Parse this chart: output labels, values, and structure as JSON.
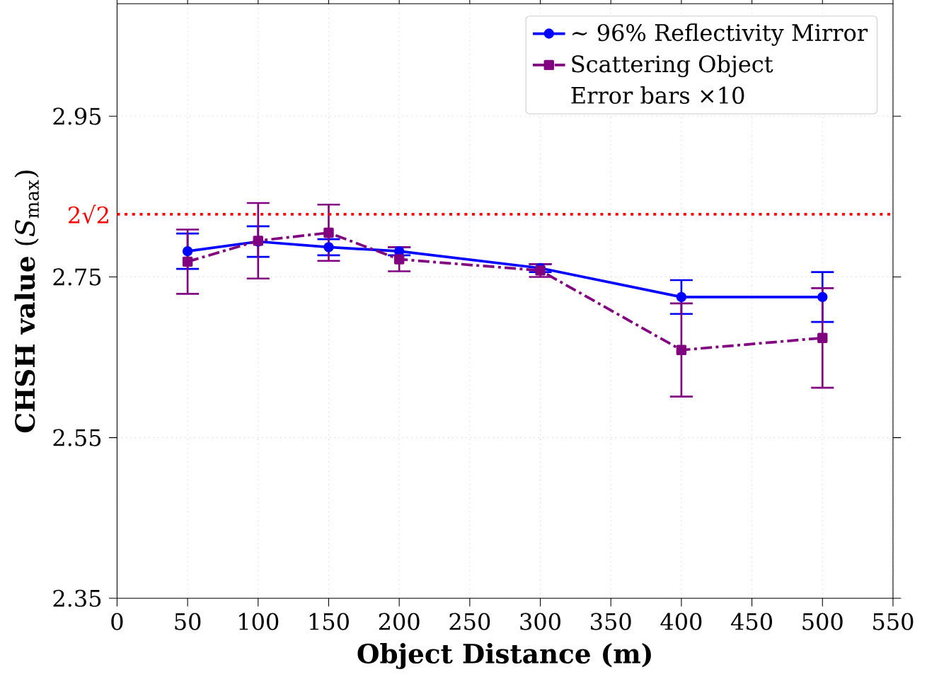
{
  "chart_data": {
    "type": "line",
    "xlabel": "Object Distance (m)",
    "ylabel": "**CHSH value** (*S*$_{max}$)",
    "x": [
      50,
      100,
      150,
      200,
      300,
      400,
      500
    ],
    "series": [
      {
        "name": "∼ 96% Reflectivity Mirror",
        "color": "#0000ff",
        "marker": "circle",
        "line_style": "solid",
        "values": [
          2.782,
          2.794,
          2.787,
          2.782,
          2.761,
          2.725,
          2.725
        ],
        "errors": [
          0.022,
          0.019,
          0.01,
          0.005,
          0.005,
          0.021,
          0.031
        ]
      },
      {
        "name": "Scattering Object",
        "color": "#800080",
        "marker": "square",
        "line_style": "dashdot",
        "values": [
          2.769,
          2.795,
          2.805,
          2.772,
          2.758,
          2.659,
          2.674
        ],
        "errors": [
          0.04,
          0.047,
          0.035,
          0.015,
          0.008,
          0.058,
          0.062
        ]
      }
    ],
    "annotations": [
      "Error bars ×10"
    ],
    "ref_lines": [
      {
        "axis": "y",
        "value": 2.828,
        "label": "2√2",
        "color": "#ff0000",
        "line_style": "dotted"
      }
    ],
    "xlim": [
      0,
      550
    ],
    "xticks": [
      0,
      50,
      100,
      150,
      200,
      250,
      300,
      350,
      400,
      450,
      500,
      550
    ],
    "ylim": [
      2.35,
      3.09
    ],
    "yticks": [
      2.35,
      2.55,
      2.75,
      2.95
    ],
    "grid": true,
    "legend": "top right"
  }
}
